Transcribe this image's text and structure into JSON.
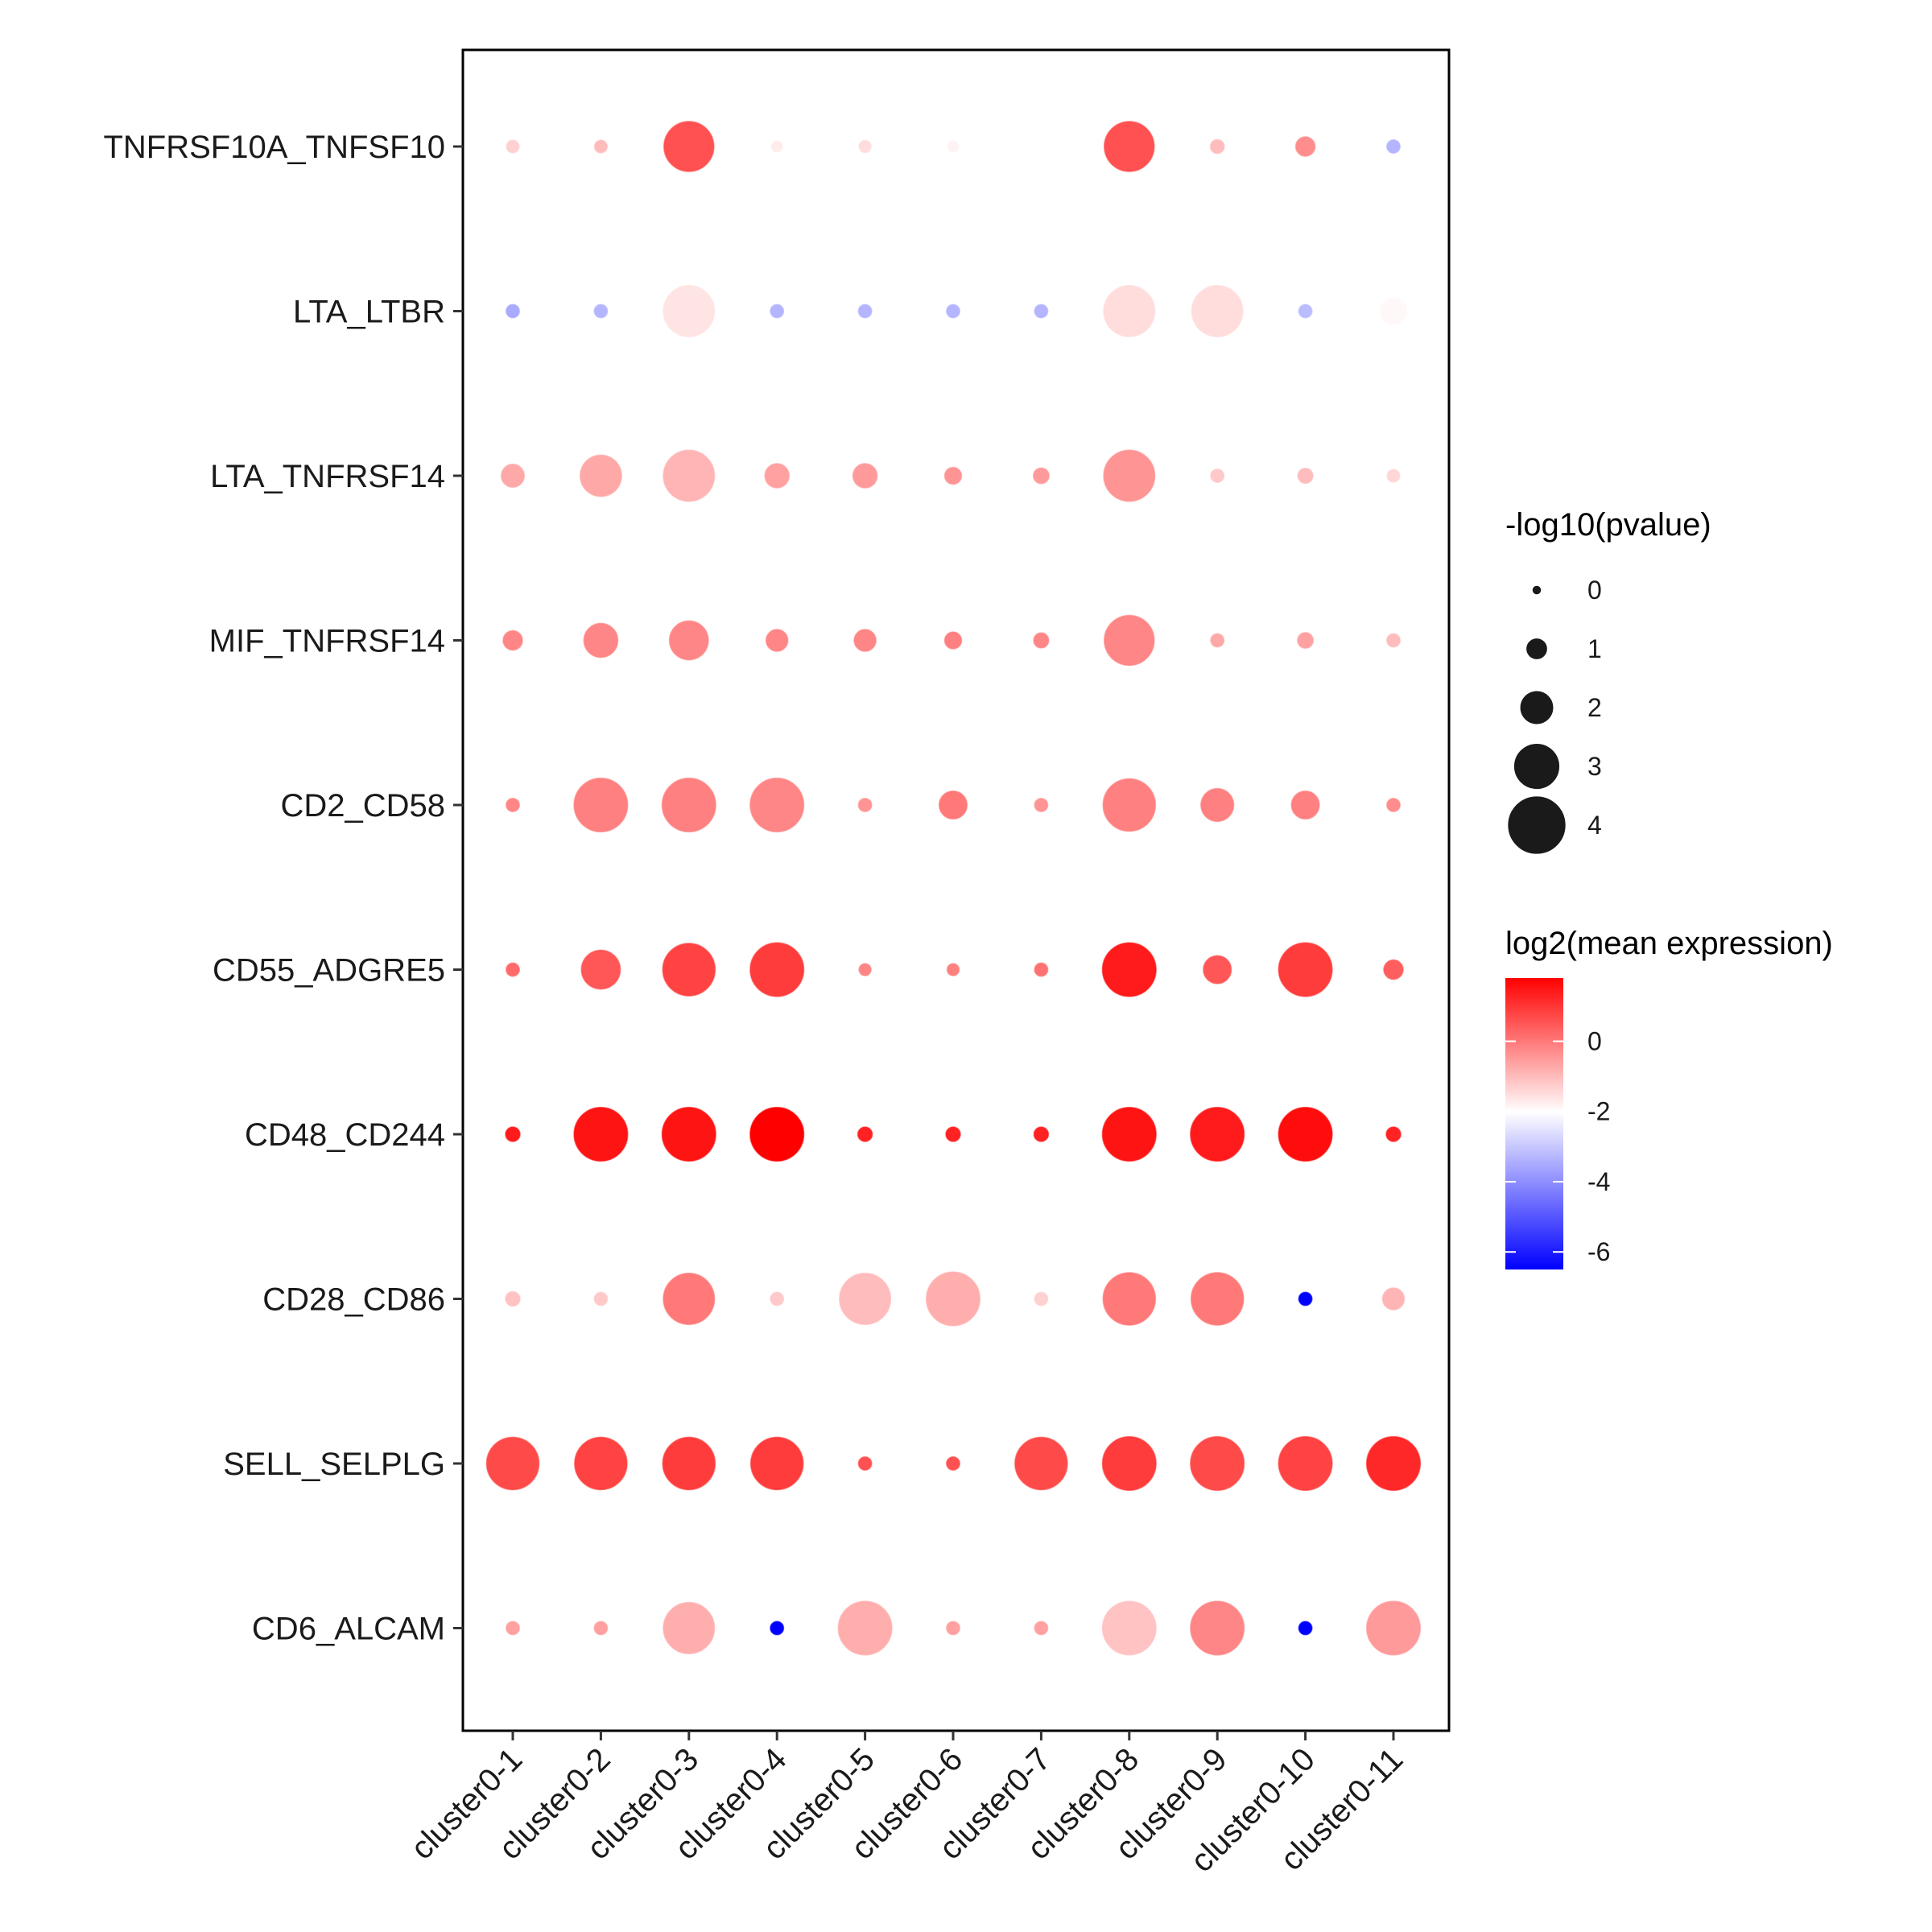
{
  "chart_data": {
    "type": "scatter",
    "subtype": "dot-plot",
    "title": "",
    "xlabel": "",
    "ylabel": "",
    "x_categories": [
      "cluster0-1",
      "cluster0-2",
      "cluster0-3",
      "cluster0-4",
      "cluster0-5",
      "cluster0-6",
      "cluster0-7",
      "cluster0-8",
      "cluster0-9",
      "cluster0-10",
      "cluster0-11"
    ],
    "y_categories": [
      "TNFRSF10A_TNFSF10",
      "LTA_LTBR",
      "LTA_TNFRSF14",
      "MIF_TNFRSF14",
      "CD2_CD58",
      "CD55_ADGRE5",
      "CD48_CD244",
      "CD28_CD86",
      "SELL_SELPLG",
      "CD6_ALCAM"
    ],
    "size_legend": {
      "title": "-log10(pvalue)",
      "values": [
        0,
        1,
        2,
        3,
        4
      ],
      "labels": [
        "0",
        "1",
        "2",
        "3",
        "4"
      ]
    },
    "color_legend": {
      "title": "log2(mean expression)",
      "range": [
        -6.5,
        1.8
      ],
      "ticks": [
        0,
        -2,
        -4,
        -6
      ],
      "tick_labels": [
        "0",
        "-2",
        "-4",
        "-6"
      ],
      "colors": {
        "low": "#0000ff",
        "mid": "#ffffff",
        "high": "#ff0000"
      },
      "midpoint": -2
    },
    "series": [
      {
        "y": "TNFRSF10A_TNFSF10",
        "size": [
          0.25,
          0.25,
          3.3,
          0.1,
          0.2,
          0.1,
          0.05,
          3.3,
          0.35,
          0.8,
          0.3
        ],
        "color": [
          -1.3,
          -1.0,
          0.6,
          -1.7,
          -1.5,
          -1.8,
          -2.0,
          0.6,
          -1.0,
          -0.3,
          -3.3
        ]
      },
      {
        "y": "LTA_LTBR",
        "size": [
          0.3,
          0.3,
          3.4,
          0.3,
          0.3,
          0.3,
          0.3,
          3.4,
          3.4,
          0.3,
          1.4
        ],
        "color": [
          -3.5,
          -3.3,
          -1.6,
          -3.3,
          -3.3,
          -3.3,
          -3.3,
          -1.5,
          -1.5,
          -3.2,
          -1.9
        ]
      },
      {
        "y": "LTA_TNFRSF14",
        "size": [
          1.1,
          2.6,
          3.4,
          1.2,
          1.2,
          0.6,
          0.5,
          3.4,
          0.3,
          0.45,
          0.25
        ],
        "color": [
          -0.7,
          -0.7,
          -0.9,
          -0.6,
          -0.5,
          -0.4,
          -0.5,
          -0.4,
          -1.2,
          -1.0,
          -1.4
        ]
      },
      {
        "y": "MIF_TNFRSF14",
        "size": [
          0.8,
          2.0,
          2.4,
          1.0,
          1.0,
          0.6,
          0.45,
          3.3,
          0.3,
          0.5,
          0.3
        ],
        "color": [
          -0.2,
          -0.2,
          -0.2,
          -0.2,
          -0.2,
          -0.1,
          -0.2,
          -0.2,
          -0.7,
          -0.6,
          -1.0
        ]
      },
      {
        "y": "CD2_CD58",
        "size": [
          0.3,
          3.6,
          3.6,
          3.6,
          0.3,
          1.5,
          0.3,
          3.5,
          1.9,
          1.5,
          0.3
        ],
        "color": [
          -0.2,
          -0.1,
          -0.1,
          -0.2,
          -0.4,
          0.0,
          -0.4,
          -0.1,
          -0.1,
          -0.1,
          -0.3
        ]
      },
      {
        "y": "CD55_ADGRE5",
        "size": [
          0.3,
          2.4,
          3.5,
          3.6,
          0.2,
          0.2,
          0.3,
          3.6,
          1.5,
          3.6,
          0.8
        ],
        "color": [
          0.2,
          0.5,
          0.8,
          0.9,
          -0.2,
          -0.1,
          0.1,
          1.4,
          0.5,
          0.9,
          0.4
        ]
      },
      {
        "y": "CD48_CD244",
        "size": [
          0.4,
          3.6,
          3.6,
          3.6,
          0.4,
          0.4,
          0.4,
          3.6,
          3.6,
          3.6,
          0.4
        ],
        "color": [
          1.4,
          1.5,
          1.5,
          1.8,
          1.3,
          1.3,
          1.3,
          1.5,
          1.4,
          1.6,
          1.3
        ]
      },
      {
        "y": "CD28_CD86",
        "size": [
          0.4,
          0.3,
          3.4,
          0.3,
          3.4,
          3.6,
          0.3,
          3.5,
          3.5,
          0.3,
          1.0
        ],
        "color": [
          -1.1,
          -1.2,
          0.0,
          -1.2,
          -1.0,
          -0.8,
          -1.3,
          0.0,
          0.0,
          -6.5,
          -0.9
        ]
      },
      {
        "y": "SELL_SELPLG",
        "size": [
          3.5,
          3.5,
          3.5,
          3.5,
          0.3,
          0.3,
          3.5,
          3.6,
          3.6,
          3.6,
          3.6
        ],
        "color": [
          0.7,
          0.8,
          0.9,
          0.9,
          0.6,
          0.6,
          0.7,
          0.9,
          0.7,
          0.8,
          1.2
        ]
      },
      {
        "y": "CD6_ALCAM",
        "size": [
          0.3,
          0.3,
          3.4,
          0.3,
          3.6,
          0.3,
          0.3,
          3.6,
          3.6,
          0.3,
          3.6
        ],
        "color": [
          -0.6,
          -0.6,
          -0.8,
          -6.5,
          -0.8,
          -0.6,
          -0.6,
          -1.1,
          -0.2,
          -6.5,
          -0.5
        ]
      }
    ],
    "legend_placement": "right",
    "grid": false
  }
}
